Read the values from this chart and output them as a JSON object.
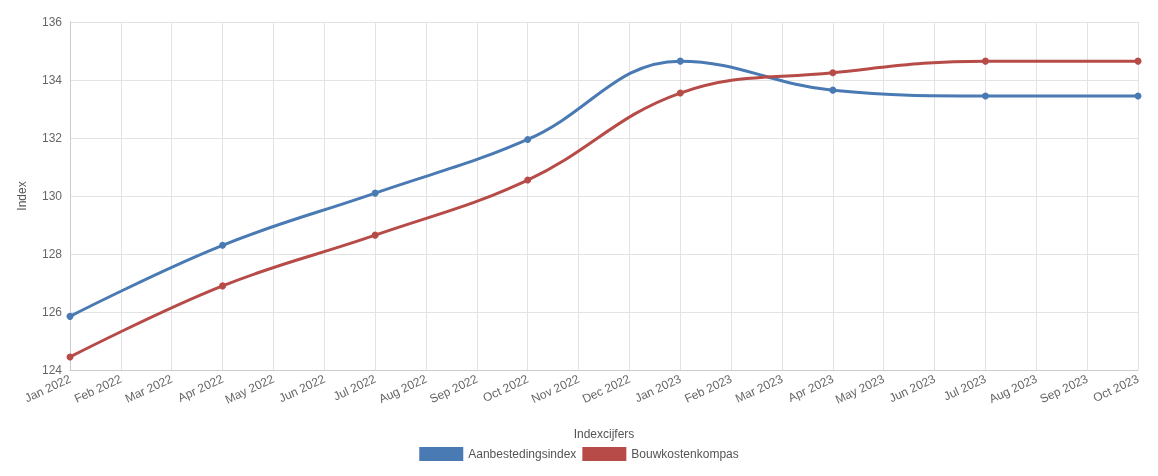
{
  "chart_data": {
    "type": "line",
    "xlabel": "Indexcijfers",
    "ylabel": "Index",
    "categories": [
      "Jan 2022",
      "Feb 2022",
      "Mar 2022",
      "Apr 2022",
      "May 2022",
      "Jun 2022",
      "Jul 2022",
      "Aug 2022",
      "Sep 2022",
      "Oct 2022",
      "Nov 2022",
      "Dec 2022",
      "Jan 2023",
      "Feb 2023",
      "Mar 2023",
      "Apr 2023",
      "May 2023",
      "Jun 2023",
      "Jul 2023",
      "Aug 2023",
      "Sep 2023",
      "Oct 2023"
    ],
    "series": [
      {
        "name": "Aanbestedingsindex",
        "color": "#4a7ab4",
        "values": [
          125.85,
          null,
          null,
          128.3,
          null,
          null,
          130.1,
          null,
          null,
          131.95,
          null,
          null,
          134.65,
          null,
          null,
          133.65,
          null,
          null,
          133.45,
          null,
          null,
          133.45
        ]
      },
      {
        "name": "Bouwkostenkompas",
        "color": "#b64b48",
        "values": [
          124.45,
          null,
          null,
          126.9,
          null,
          null,
          128.65,
          null,
          null,
          130.55,
          null,
          null,
          133.55,
          null,
          null,
          134.25,
          null,
          null,
          134.65,
          null,
          null,
          134.65
        ]
      }
    ],
    "ylim": [
      124,
      136
    ],
    "yticks": [
      124,
      126,
      128,
      130,
      132,
      134,
      136
    ],
    "grid": true,
    "legend": "bottom",
    "marker": "circle",
    "line_style": "solid"
  }
}
